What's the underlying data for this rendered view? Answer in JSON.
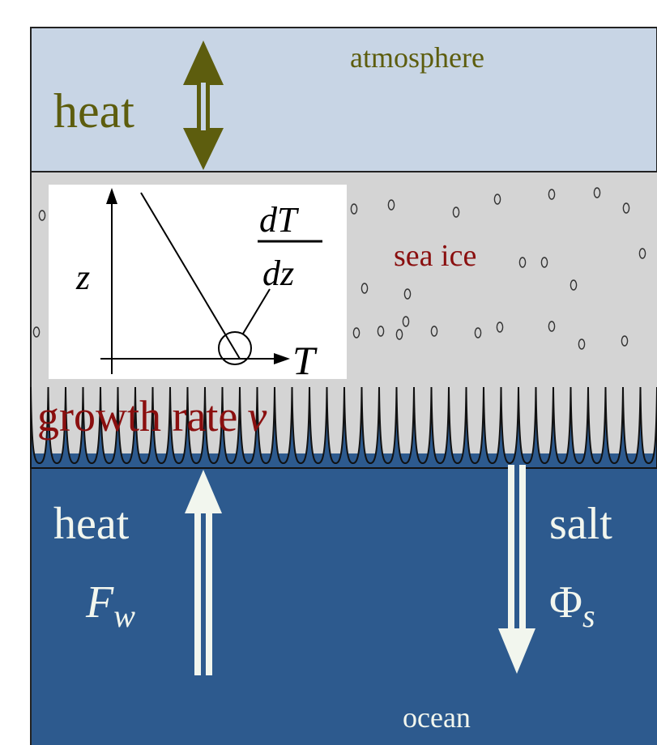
{
  "labels": {
    "atmosphere": "atmosphere",
    "heat_top": "heat",
    "sea_ice": "sea ice",
    "growth_rate": "growth rate",
    "growth_symbol": "v",
    "heat_bottom": "heat",
    "flux_heat_symbol": "F",
    "flux_heat_subscript": "w",
    "salt": "salt",
    "flux_salt_symbol": "Φ",
    "flux_salt_subscript": "s",
    "ocean": "ocean"
  },
  "inset": {
    "y_axis": "z",
    "x_axis": "T",
    "gradient_numerator": "dT",
    "gradient_denominator": "dz"
  },
  "colors": {
    "atmosphere": "#c8d5e5",
    "sea_ice": "#d4d4d4",
    "ocean": "#2d5a8e",
    "heat_arrow_top": "#5d5d0e",
    "atmosphere_text": "#5d5d0e",
    "sea_ice_text": "#8a0f0f",
    "ocean_text": "#f2f6ee"
  }
}
